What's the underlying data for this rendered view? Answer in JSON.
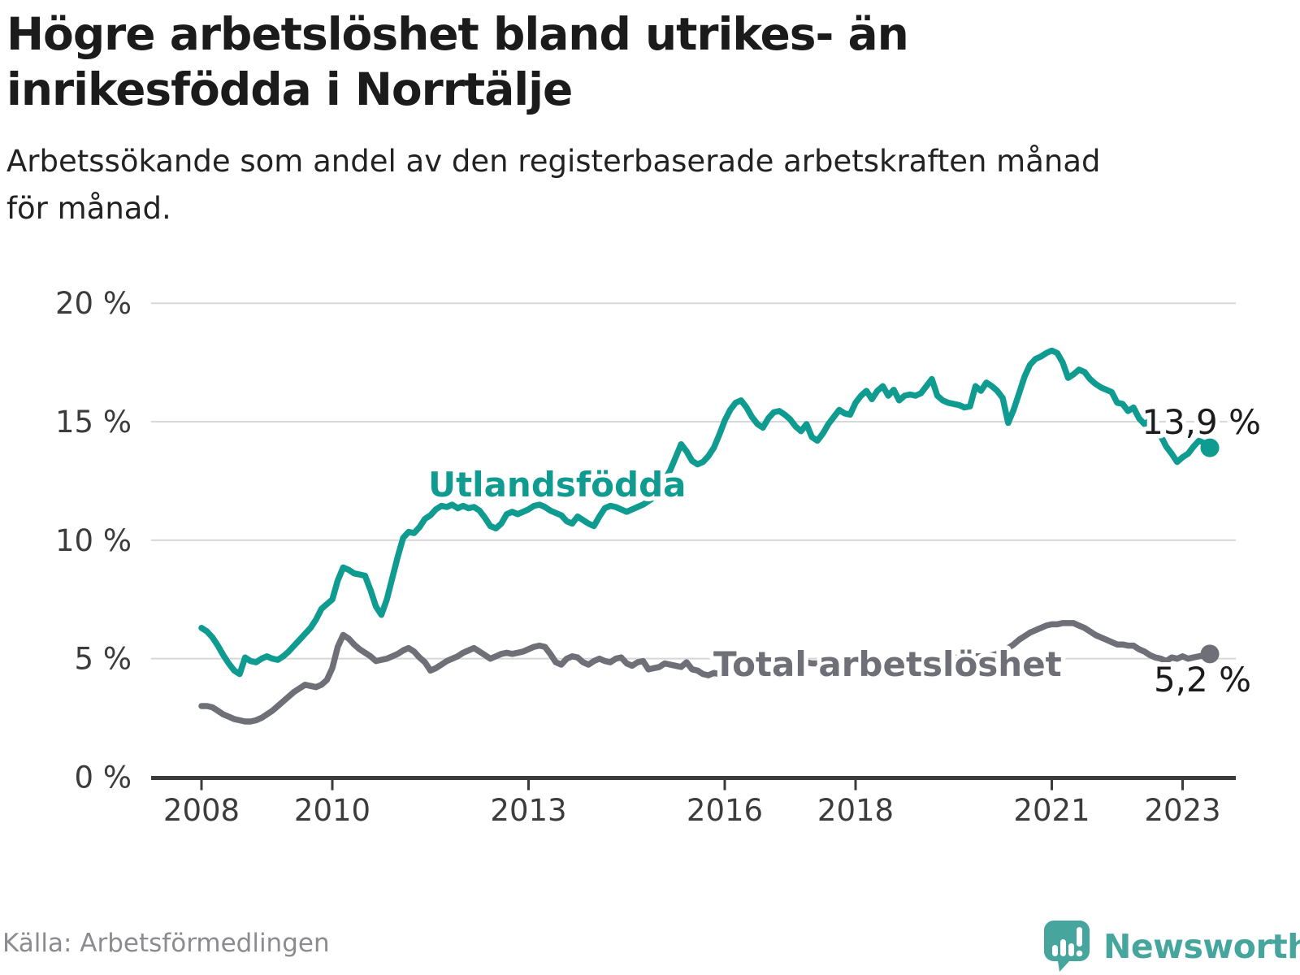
{
  "header": {
    "title_lines": [
      "Högre arbetslöshet bland utrikes- än",
      "inrikesfödda i Norrtälje"
    ],
    "subtitle_lines": [
      "Arbetssökande som andel av den registerbaserade arbetskraften månad",
      "för månad."
    ]
  },
  "footer": {
    "source": "Källa: Arbetsförmedlingen",
    "brand": "Newsworthy"
  },
  "colors": {
    "foreign_born": "#109b90",
    "total": "#6f6f78",
    "grid": "#d8d8d8",
    "axis": "#3b3b3b",
    "logo_teal": "#46a69e"
  },
  "chart_data": {
    "type": "line",
    "title": "Högre arbetslöshet bland utrikes- än inrikesfödda i Norrtälje",
    "subtitle": "Arbetssökande som andel av den registerbaserade arbetskraften månad för månad.",
    "source": "Källa: Arbetsförmedlingen",
    "unit": "%",
    "grid": true,
    "legend_position": "inline-labels",
    "x_axis": {
      "start_year": 2008,
      "step_months": 1,
      "end_point": "2023-06",
      "ticks": [
        {
          "label": "2008",
          "year": 2008
        },
        {
          "label": "2010",
          "year": 2010
        },
        {
          "label": "2013",
          "year": 2013
        },
        {
          "label": "2016",
          "year": 2016
        },
        {
          "label": "2018",
          "year": 2018
        },
        {
          "label": "2021",
          "year": 2021
        },
        {
          "label": "2023",
          "year": 2023
        }
      ]
    },
    "y_axis": {
      "min": 0,
      "max": 20,
      "ticks": [
        {
          "label": "0 %",
          "value": 0
        },
        {
          "label": "5 %",
          "value": 5
        },
        {
          "label": "10 %",
          "value": 10
        },
        {
          "label": "15 %",
          "value": 15
        },
        {
          "label": "20 %",
          "value": 20
        }
      ]
    },
    "series": [
      {
        "name": "Utlandsfödda",
        "label": "Utlandsfödda",
        "color": "#109b90",
        "end_label": "13,9 %",
        "end_value": 13.9,
        "values": [
          6.3,
          6.15,
          5.9,
          5.55,
          5.15,
          4.8,
          4.5,
          4.35,
          5.05,
          4.9,
          4.85,
          5.0,
          5.1,
          5.0,
          4.95,
          5.1,
          5.3,
          5.55,
          5.8,
          6.05,
          6.3,
          6.65,
          7.1,
          7.3,
          7.5,
          8.3,
          8.85,
          8.75,
          8.6,
          8.55,
          8.5,
          7.9,
          7.2,
          6.85,
          7.5,
          8.4,
          9.3,
          10.1,
          10.35,
          10.3,
          10.55,
          10.9,
          11.05,
          11.3,
          11.45,
          11.4,
          11.5,
          11.35,
          11.45,
          11.35,
          11.4,
          11.25,
          10.95,
          10.6,
          10.5,
          10.7,
          11.1,
          11.2,
          11.1,
          11.2,
          11.3,
          11.45,
          11.5,
          11.4,
          11.25,
          11.15,
          11.05,
          10.8,
          10.7,
          11.0,
          10.85,
          10.7,
          10.6,
          11.0,
          11.35,
          11.45,
          11.4,
          11.3,
          11.2,
          11.3,
          11.4,
          11.5,
          11.65,
          11.8,
          12.0,
          12.55,
          12.95,
          13.5,
          14.05,
          13.75,
          13.35,
          13.2,
          13.3,
          13.55,
          13.9,
          14.45,
          15.05,
          15.5,
          15.8,
          15.9,
          15.6,
          15.2,
          14.9,
          14.75,
          15.15,
          15.4,
          15.45,
          15.3,
          15.1,
          14.8,
          14.6,
          14.9,
          14.35,
          14.2,
          14.5,
          14.9,
          15.2,
          15.5,
          15.35,
          15.3,
          15.8,
          16.1,
          16.3,
          15.95,
          16.3,
          16.5,
          16.1,
          16.35,
          15.9,
          16.1,
          16.15,
          16.1,
          16.2,
          16.5,
          16.8,
          16.1,
          15.9,
          15.8,
          15.75,
          15.7,
          15.6,
          15.65,
          16.5,
          16.3,
          16.65,
          16.5,
          16.3,
          16.0,
          14.95,
          15.5,
          16.2,
          16.9,
          17.4,
          17.65,
          17.75,
          17.9,
          18.0,
          17.9,
          17.5,
          16.85,
          17.0,
          17.2,
          17.1,
          16.8,
          16.6,
          16.45,
          16.35,
          16.25,
          15.8,
          15.75,
          15.45,
          15.6,
          15.15,
          14.9,
          15.05,
          14.55,
          14.4,
          13.95,
          13.65,
          13.3,
          13.5,
          13.65,
          13.95,
          14.2,
          14.1,
          13.9
        ]
      },
      {
        "name": "Total arbetslöshet",
        "label": "Total arbetslöshet",
        "color": "#6f6f78",
        "end_label": "5,2 %",
        "end_value": 5.2,
        "values": [
          3.0,
          3.0,
          2.95,
          2.8,
          2.65,
          2.55,
          2.45,
          2.4,
          2.35,
          2.35,
          2.4,
          2.5,
          2.65,
          2.8,
          3.0,
          3.2,
          3.4,
          3.6,
          3.75,
          3.9,
          3.85,
          3.8,
          3.9,
          4.1,
          4.6,
          5.5,
          6.0,
          5.85,
          5.6,
          5.4,
          5.25,
          5.1,
          4.9,
          4.95,
          5.0,
          5.1,
          5.2,
          5.35,
          5.45,
          5.3,
          5.05,
          4.85,
          4.5,
          4.6,
          4.75,
          4.9,
          5.0,
          5.1,
          5.25,
          5.35,
          5.45,
          5.3,
          5.15,
          5.0,
          5.1,
          5.2,
          5.25,
          5.2,
          5.25,
          5.3,
          5.4,
          5.5,
          5.55,
          5.5,
          5.2,
          4.85,
          4.75,
          5.0,
          5.1,
          5.05,
          4.85,
          4.75,
          4.9,
          5.0,
          4.9,
          4.85,
          5.0,
          5.05,
          4.8,
          4.7,
          4.85,
          4.9,
          4.55,
          4.6,
          4.65,
          4.8,
          4.75,
          4.7,
          4.65,
          4.85,
          4.55,
          4.5,
          4.35,
          4.3,
          4.4,
          4.35,
          4.3,
          4.4,
          4.5,
          4.55,
          4.6,
          4.65,
          4.7,
          4.75,
          4.8,
          4.8,
          4.85,
          4.85,
          4.9,
          4.9,
          4.85,
          4.85,
          4.8,
          4.8,
          4.8,
          4.85,
          4.85,
          4.9,
          4.9,
          4.9,
          4.9,
          4.9,
          4.85,
          4.85,
          4.8,
          4.8,
          4.85,
          4.85,
          4.9,
          4.9,
          4.95,
          4.95,
          4.9,
          4.95,
          4.95,
          5.0,
          5.0,
          5.0,
          5.05,
          5.05,
          5.1,
          5.1,
          5.1,
          5.1,
          5.1,
          5.15,
          5.2,
          5.3,
          5.45,
          5.6,
          5.8,
          5.95,
          6.1,
          6.2,
          6.3,
          6.4,
          6.45,
          6.45,
          6.5,
          6.5,
          6.5,
          6.4,
          6.3,
          6.15,
          6.0,
          5.9,
          5.8,
          5.7,
          5.6,
          5.6,
          5.55,
          5.55,
          5.4,
          5.3,
          5.15,
          5.05,
          5.0,
          4.9,
          5.05,
          5.0,
          5.1,
          5.0,
          5.05,
          5.1,
          5.15,
          5.2
        ]
      }
    ]
  }
}
